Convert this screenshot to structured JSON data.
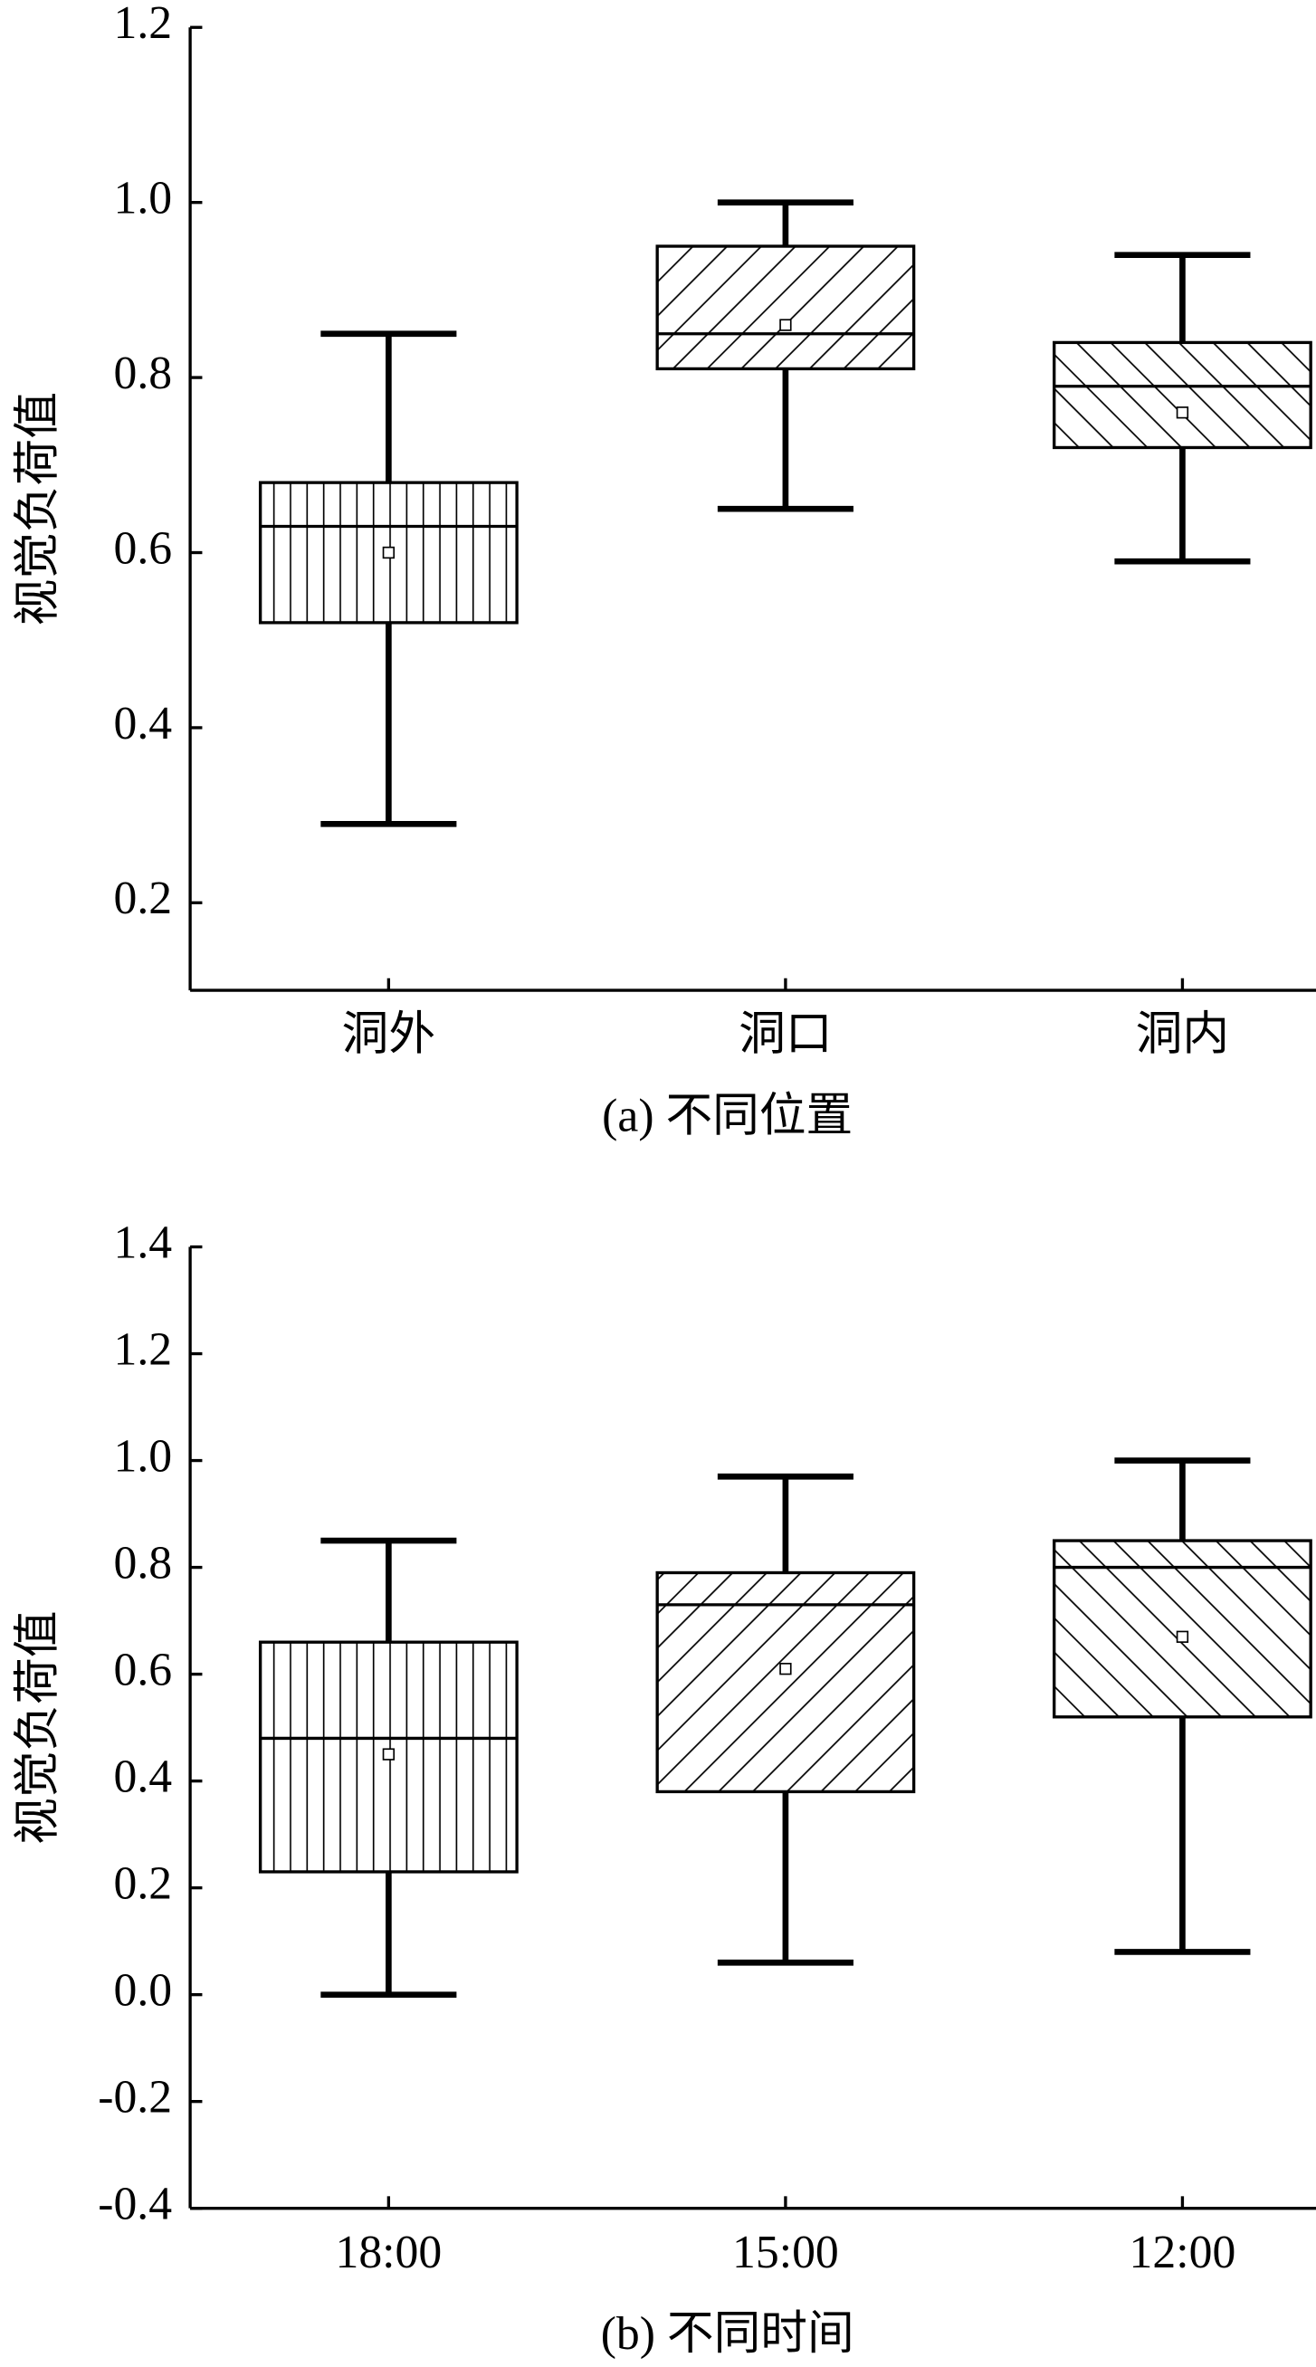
{
  "chart_data": [
    {
      "type": "box",
      "ylabel": "视觉负荷值",
      "xlabel": "(a) 不同位置",
      "categories": [
        "洞外",
        "洞口",
        "洞内"
      ],
      "boxes": [
        {
          "min": 0.29,
          "q1": 0.52,
          "median": 0.63,
          "q3": 0.68,
          "max": 0.85,
          "mean": 0.6
        },
        {
          "min": 0.65,
          "q1": 0.81,
          "median": 0.85,
          "q3": 0.95,
          "max": 1.0,
          "mean": 0.86
        },
        {
          "min": 0.59,
          "q1": 0.72,
          "median": 0.79,
          "q3": 0.84,
          "max": 0.94,
          "mean": 0.76
        }
      ],
      "patterns": [
        "vertical",
        "backslash",
        "slash"
      ],
      "ylim": [
        0.1,
        1.2
      ],
      "yticks": [
        0.2,
        0.4,
        0.6,
        0.8,
        {
          "value": 1,
          "label": "1.0"
        },
        1.2
      ]
    },
    {
      "type": "box",
      "ylabel": "视觉负荷值",
      "xlabel": "(b) 不同时间",
      "categories": [
        "18:00",
        "15:00",
        "12:00"
      ],
      "boxes": [
        {
          "min": 0.0,
          "q1": 0.23,
          "median": 0.48,
          "q3": 0.66,
          "max": 0.85,
          "mean": 0.45
        },
        {
          "min": 0.06,
          "q1": 0.38,
          "median": 0.73,
          "q3": 0.79,
          "max": 0.97,
          "mean": 0.61
        },
        {
          "min": 0.08,
          "q1": 0.52,
          "median": 0.8,
          "q3": 0.85,
          "max": 1.0,
          "mean": 0.67
        }
      ],
      "patterns": [
        "vertical",
        "backslash",
        "slash"
      ],
      "ylim": [
        -0.4,
        1.4
      ],
      "yticks": [
        -0.4,
        -0.2,
        {
          "value": 0,
          "label": "0.0"
        },
        0.2,
        0.4,
        0.6,
        0.8,
        {
          "value": 1,
          "label": "1.0"
        },
        1.2,
        1.4
      ]
    }
  ]
}
